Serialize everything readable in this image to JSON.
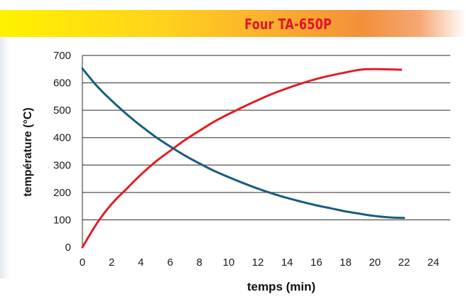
{
  "title": "Four TA-650P",
  "chart_data": {
    "type": "line",
    "title": "Four TA-650P",
    "xlabel": "temps (min)",
    "ylabel": "température (°C)",
    "xlim": [
      0,
      24
    ],
    "ylim": [
      0,
      700
    ],
    "xticks": [
      0,
      2,
      4,
      6,
      8,
      10,
      12,
      14,
      16,
      18,
      20,
      22,
      24
    ],
    "yticks": [
      0,
      100,
      200,
      300,
      400,
      500,
      600,
      700
    ],
    "grid": "horizontal",
    "series": [
      {
        "color": "#e31e24",
        "x": [
          0,
          1,
          2,
          3,
          4,
          5,
          6,
          7,
          8,
          9,
          10,
          11,
          12,
          13,
          14,
          15,
          16,
          17,
          18,
          19,
          20,
          21,
          21.8
        ],
        "y": [
          0,
          88,
          158,
          212,
          265,
          312,
          352,
          391,
          425,
          458,
          486,
          512,
          537,
          560,
          580,
          598,
          614,
          627,
          638,
          648,
          650,
          649,
          648
        ]
      },
      {
        "color": "#1a5d7e",
        "x": [
          0,
          1,
          2,
          3,
          4,
          5,
          6,
          7,
          8,
          9,
          10,
          11,
          12,
          13,
          14,
          15,
          16,
          17,
          18,
          19,
          20,
          21,
          22
        ],
        "y": [
          652,
          588,
          535,
          487,
          443,
          403,
          368,
          335,
          306,
          279,
          256,
          234,
          214,
          196,
          180,
          166,
          153,
          142,
          131,
          122,
          114,
          109,
          107
        ]
      }
    ]
  }
}
